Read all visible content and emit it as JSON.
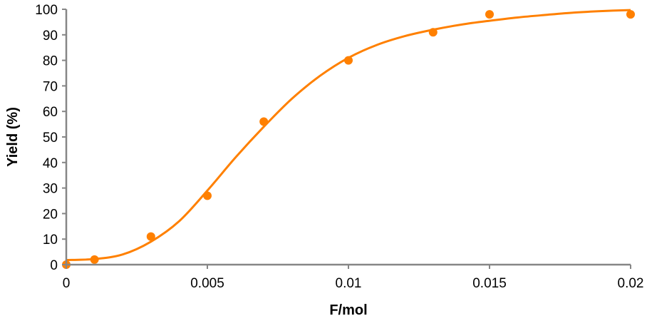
{
  "chart_data": {
    "type": "scatter",
    "title": "",
    "xlabel": "F/mol",
    "ylabel": "Yield (%)",
    "xlim": [
      0,
      0.02
    ],
    "ylim": [
      0,
      100
    ],
    "grid": false,
    "x_ticks": [
      "0",
      "0.005",
      "0.01",
      "0.015",
      "0.02"
    ],
    "x_tick_values": [
      0,
      0.005,
      0.01,
      0.015,
      0.02
    ],
    "y_ticks": [
      "0",
      "10",
      "20",
      "30",
      "40",
      "50",
      "60",
      "70",
      "80",
      "90",
      "100"
    ],
    "y_tick_values": [
      0,
      10,
      20,
      30,
      40,
      50,
      60,
      70,
      80,
      90,
      100
    ],
    "color": "#FF8000",
    "axis_color": "#868686",
    "series": [
      {
        "type": "scatter",
        "x": [
          0,
          0.001,
          0.003,
          0.005,
          0.007,
          0.01,
          0.013,
          0.015,
          0.02
        ],
        "y": [
          0,
          2,
          11,
          27,
          56,
          80,
          91,
          98,
          98
        ]
      },
      {
        "type": "line",
        "smooth": true,
        "x": [
          0,
          0.001,
          0.002,
          0.003,
          0.004,
          0.005,
          0.006,
          0.007,
          0.008,
          0.009,
          0.01,
          0.011,
          0.012,
          0.013,
          0.014,
          0.015,
          0.016,
          0.017,
          0.018,
          0.019,
          0.02
        ],
        "y": [
          1.8,
          2.2,
          4,
          9,
          17,
          29,
          42,
          54,
          65,
          74,
          81,
          86,
          89.5,
          92,
          94,
          95.5,
          96.8,
          97.8,
          98.7,
          99.3,
          99.7
        ]
      }
    ]
  }
}
